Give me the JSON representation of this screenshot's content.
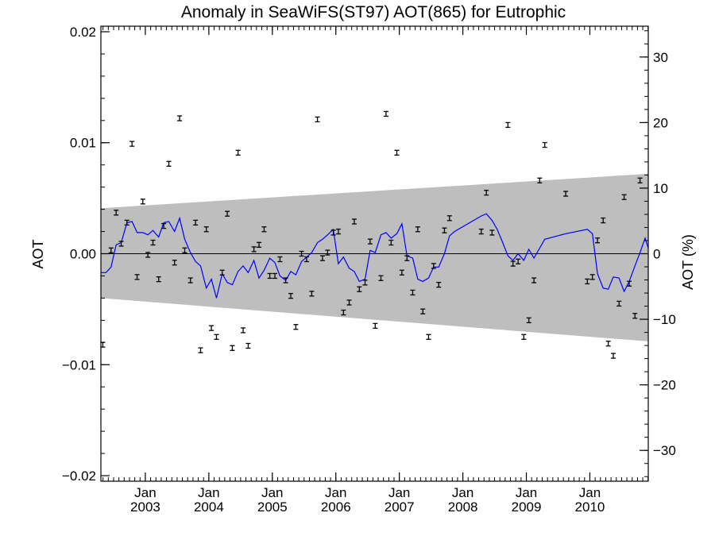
{
  "chart_data": {
    "type": "scatter",
    "title": "Anomaly in SeaWiFS(ST97) AOT(865) for Eutrophic",
    "ylabel": "AOT",
    "ylabel_right": "AOT (%)",
    "xlim": [
      2002.3,
      2010.92
    ],
    "ylim": [
      -0.0205,
      0.0205
    ],
    "ylim_right": [
      -34.7,
      34.7
    ],
    "y_ticks": [
      -0.02,
      -0.01,
      0.0,
      0.01,
      0.02
    ],
    "y_tick_labels": [
      "−0.02",
      "−0.01",
      "0.00",
      "0.01",
      "0.02"
    ],
    "y_right_ticks": [
      -30,
      -20,
      -10,
      0,
      10,
      20,
      30
    ],
    "y_right_tick_labels": [
      "−30",
      "−20",
      "−10",
      "0",
      "10",
      "20",
      "30"
    ],
    "x_ticks": [
      {
        "x": 2003.0,
        "month": "Jan",
        "year": "2003"
      },
      {
        "x": 2004.0,
        "month": "Jan",
        "year": "2004"
      },
      {
        "x": 2005.0,
        "month": "Jan",
        "year": "2005"
      },
      {
        "x": 2006.0,
        "month": "Jan",
        "year": "2006"
      },
      {
        "x": 2007.0,
        "month": "Jan",
        "year": "2007"
      },
      {
        "x": 2008.0,
        "month": "Jan",
        "year": "2008"
      },
      {
        "x": 2009.0,
        "month": "Jan",
        "year": "2009"
      },
      {
        "x": 2010.0,
        "month": "Jan",
        "year": "2010"
      }
    ],
    "band": {
      "x": [
        2002.3,
        2010.92
      ],
      "upper": [
        0.0041,
        0.0072
      ],
      "lower": [
        -0.004,
        -0.0079
      ],
      "color": "#bebebe"
    },
    "zero_line": 0.0,
    "colors": {
      "line": "#0000ff",
      "points": "#000000",
      "band": "#bebebe"
    },
    "points": [
      {
        "x": 2002.33,
        "y": -0.0082
      },
      {
        "x": 2002.46,
        "y": 0.0003
      },
      {
        "x": 2002.54,
        "y": 0.0037
      },
      {
        "x": 2002.62,
        "y": 0.0009
      },
      {
        "x": 2002.71,
        "y": 0.0028
      },
      {
        "x": 2002.79,
        "y": 0.0099
      },
      {
        "x": 2002.87,
        "y": -0.0021
      },
      {
        "x": 2002.96,
        "y": 0.0047
      },
      {
        "x": 2003.04,
        "y": -0.0001
      },
      {
        "x": 2003.12,
        "y": 0.001
      },
      {
        "x": 2003.21,
        "y": -0.0023
      },
      {
        "x": 2003.29,
        "y": 0.0025
      },
      {
        "x": 2003.37,
        "y": 0.0081
      },
      {
        "x": 2003.46,
        "y": -0.0008
      },
      {
        "x": 2003.54,
        "y": 0.0122
      },
      {
        "x": 2003.62,
        "y": 0.0003
      },
      {
        "x": 2003.71,
        "y": -0.0024
      },
      {
        "x": 2003.79,
        "y": 0.0028
      },
      {
        "x": 2003.87,
        "y": -0.0087
      },
      {
        "x": 2003.96,
        "y": 0.0022
      },
      {
        "x": 2004.04,
        "y": -0.0067
      },
      {
        "x": 2004.12,
        "y": -0.0075
      },
      {
        "x": 2004.21,
        "y": -0.0017
      },
      {
        "x": 2004.29,
        "y": 0.0036
      },
      {
        "x": 2004.37,
        "y": -0.0085
      },
      {
        "x": 2004.46,
        "y": 0.0091
      },
      {
        "x": 2004.54,
        "y": -0.0069
      },
      {
        "x": 2004.62,
        "y": -0.0083
      },
      {
        "x": 2004.71,
        "y": 0.0004
      },
      {
        "x": 2004.79,
        "y": 0.0008
      },
      {
        "x": 2004.87,
        "y": 0.0022
      },
      {
        "x": 2004.96,
        "y": -0.002
      },
      {
        "x": 2005.04,
        "y": -0.002
      },
      {
        "x": 2005.12,
        "y": -0.0005
      },
      {
        "x": 2005.21,
        "y": -0.0024
      },
      {
        "x": 2005.29,
        "y": -0.0038
      },
      {
        "x": 2005.37,
        "y": -0.0066
      },
      {
        "x": 2005.46,
        "y": 0.0
      },
      {
        "x": 2005.54,
        "y": -0.0005
      },
      {
        "x": 2005.62,
        "y": -0.0036
      },
      {
        "x": 2005.71,
        "y": 0.0121
      },
      {
        "x": 2005.79,
        "y": -0.0004
      },
      {
        "x": 2005.87,
        "y": 0.0001
      },
      {
        "x": 2005.96,
        "y": 0.0019
      },
      {
        "x": 2006.04,
        "y": 0.002
      },
      {
        "x": 2006.12,
        "y": -0.0053
      },
      {
        "x": 2006.21,
        "y": -0.0044
      },
      {
        "x": 2006.29,
        "y": 0.0029
      },
      {
        "x": 2006.37,
        "y": -0.0032
      },
      {
        "x": 2006.46,
        "y": -0.0026
      },
      {
        "x": 2006.54,
        "y": 0.0011
      },
      {
        "x": 2006.62,
        "y": -0.0065
      },
      {
        "x": 2006.71,
        "y": -0.0022
      },
      {
        "x": 2006.79,
        "y": 0.0126
      },
      {
        "x": 2006.87,
        "y": 0.001
      },
      {
        "x": 2006.96,
        "y": 0.0091
      },
      {
        "x": 2007.04,
        "y": -0.0017
      },
      {
        "x": 2007.12,
        "y": -0.0004
      },
      {
        "x": 2007.21,
        "y": -0.0035
      },
      {
        "x": 2007.29,
        "y": 0.0022
      },
      {
        "x": 2007.37,
        "y": -0.0052
      },
      {
        "x": 2007.46,
        "y": -0.0075
      },
      {
        "x": 2007.54,
        "y": -0.0011
      },
      {
        "x": 2007.62,
        "y": -0.0028
      },
      {
        "x": 2007.71,
        "y": 0.0021
      },
      {
        "x": 2007.79,
        "y": 0.0032
      },
      {
        "x": 2008.29,
        "y": 0.002
      },
      {
        "x": 2008.37,
        "y": 0.0055
      },
      {
        "x": 2008.46,
        "y": 0.0019
      },
      {
        "x": 2008.71,
        "y": 0.0116
      },
      {
        "x": 2008.79,
        "y": -0.0009
      },
      {
        "x": 2008.87,
        "y": -0.0007
      },
      {
        "x": 2008.96,
        "y": -0.0075
      },
      {
        "x": 2009.04,
        "y": -0.006
      },
      {
        "x": 2009.12,
        "y": -0.0024
      },
      {
        "x": 2009.21,
        "y": 0.0066
      },
      {
        "x": 2009.29,
        "y": 0.0098
      },
      {
        "x": 2009.62,
        "y": 0.0054
      },
      {
        "x": 2009.96,
        "y": -0.0025
      },
      {
        "x": 2010.04,
        "y": -0.0021
      },
      {
        "x": 2010.12,
        "y": 0.0012
      },
      {
        "x": 2010.21,
        "y": 0.003
      },
      {
        "x": 2010.29,
        "y": -0.0081
      },
      {
        "x": 2010.37,
        "y": -0.0092
      },
      {
        "x": 2010.46,
        "y": -0.0045
      },
      {
        "x": 2010.54,
        "y": 0.0051
      },
      {
        "x": 2010.62,
        "y": -0.0027
      },
      {
        "x": 2010.71,
        "y": -0.0056
      },
      {
        "x": 2010.79,
        "y": 0.0066
      }
    ],
    "line": {
      "x": [
        2002.3,
        2002.38,
        2002.46,
        2002.54,
        2002.62,
        2002.71,
        2002.79,
        2002.87,
        2002.96,
        2003.04,
        2003.12,
        2003.21,
        2003.29,
        2003.37,
        2003.46,
        2003.54,
        2003.62,
        2003.71,
        2003.79,
        2003.87,
        2003.96,
        2004.04,
        2004.12,
        2004.21,
        2004.29,
        2004.37,
        2004.46,
        2004.54,
        2004.62,
        2004.71,
        2004.79,
        2004.87,
        2004.96,
        2005.04,
        2005.12,
        2005.21,
        2005.29,
        2005.37,
        2005.46,
        2005.54,
        2005.62,
        2005.71,
        2005.79,
        2005.87,
        2005.96,
        2006.04,
        2006.12,
        2006.21,
        2006.29,
        2006.37,
        2006.46,
        2006.54,
        2006.62,
        2006.71,
        2006.79,
        2006.87,
        2006.96,
        2007.04,
        2007.12,
        2007.21,
        2007.29,
        2007.37,
        2007.46,
        2007.54,
        2007.62,
        2007.71,
        2007.79,
        2007.87,
        2008.29,
        2008.37,
        2008.46,
        2008.54,
        2008.62,
        2008.71,
        2008.79,
        2008.87,
        2008.96,
        2009.04,
        2009.12,
        2009.21,
        2009.29,
        2009.62,
        2009.96,
        2010.04,
        2010.12,
        2010.21,
        2010.29,
        2010.37,
        2010.46,
        2010.54,
        2010.62,
        2010.71,
        2010.79,
        2010.87,
        2010.92
      ],
      "y": [
        -0.0017,
        -0.0017,
        -0.0012,
        0.0008,
        0.001,
        0.0028,
        0.0029,
        0.0019,
        0.0019,
        0.0017,
        0.0021,
        0.0015,
        0.0028,
        0.0029,
        0.002,
        0.0032,
        0.0013,
        0.0001,
        -0.0007,
        -0.0011,
        -0.0031,
        -0.0023,
        -0.004,
        -0.0018,
        -0.0026,
        -0.0028,
        -0.0016,
        -0.0011,
        -0.0017,
        -0.0006,
        -0.0022,
        -0.0015,
        -0.0004,
        -0.0008,
        -0.002,
        -0.0024,
        -0.0016,
        -0.0019,
        -0.0007,
        -0.0003,
        0.0001,
        0.001,
        0.0013,
        0.0017,
        0.0022,
        -0.0009,
        -0.0003,
        -0.0013,
        -0.0016,
        -0.0025,
        -0.0023,
        0.0003,
        0.0001,
        0.0017,
        0.0019,
        0.0014,
        0.0018,
        0.0027,
        -0.0002,
        -0.0004,
        -0.0023,
        -0.0025,
        -0.0022,
        -0.0012,
        -0.0012,
        0.0,
        0.0016,
        0.002,
        0.0034,
        0.0036,
        0.003,
        0.0022,
        0.0011,
        -0.0002,
        -0.0006,
        0.0,
        -0.0006,
        0.0004,
        -0.0004,
        0.0005,
        0.0013,
        0.0018,
        0.0022,
        0.0018,
        -0.0018,
        -0.0031,
        -0.0032,
        -0.0021,
        -0.0022,
        -0.0034,
        -0.0025,
        -0.0011,
        0.0001,
        0.0014,
        0.0005
      ]
    }
  }
}
